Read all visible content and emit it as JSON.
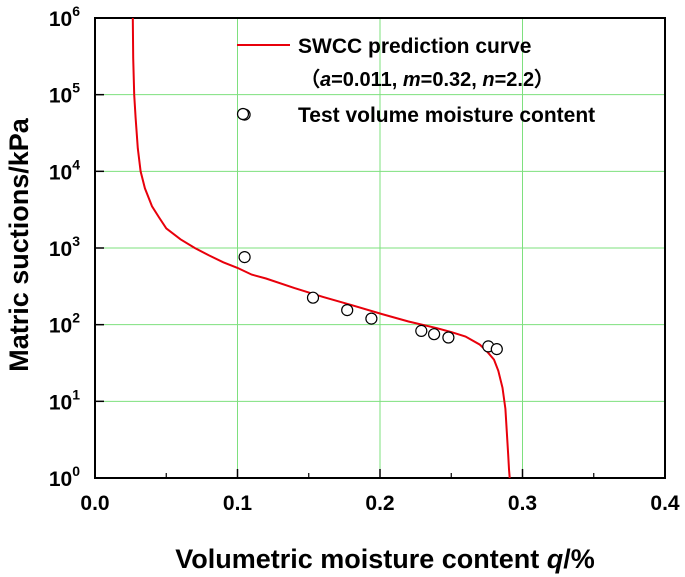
{
  "chart_data": {
    "type": "line",
    "title": "",
    "xlabel": "Volumetric moisture content",
    "xlabel_symbol": "q",
    "xlabel_unit": "/%",
    "ylabel": "Matric suctions/kPa",
    "xlim": [
      0.0,
      0.4
    ],
    "ylim": [
      1,
      1000000
    ],
    "yscale": "log",
    "grid": true,
    "x_ticks": [
      "0.0",
      "0.1",
      "0.2",
      "0.3",
      "0.4"
    ],
    "y_ticks": [
      {
        "base": "10",
        "exp": "0"
      },
      {
        "base": "10",
        "exp": "1"
      },
      {
        "base": "10",
        "exp": "2"
      },
      {
        "base": "10",
        "exp": "3"
      },
      {
        "base": "10",
        "exp": "4"
      },
      {
        "base": "10",
        "exp": "5"
      },
      {
        "base": "10",
        "exp": "6"
      }
    ],
    "legend_position": "top-right",
    "legend": {
      "curve_label": "SWCC prediction curve",
      "params": {
        "open": "（",
        "a_sym": "a",
        "a_val": "=0.011, ",
        "m_sym": "m",
        "m_val": "=0.32, ",
        "n_sym": "n",
        "n_val": "=2.2",
        "close": "）"
      },
      "points_label": "Test volume moisture content"
    },
    "series": [
      {
        "name": "SWCC prediction curve",
        "kind": "line",
        "color": "#e8000b",
        "x": [
          0.0265,
          0.0268,
          0.0275,
          0.0285,
          0.03,
          0.032,
          0.035,
          0.04,
          0.045,
          0.05,
          0.06,
          0.07,
          0.08,
          0.09,
          0.1,
          0.11,
          0.12,
          0.14,
          0.16,
          0.18,
          0.2,
          0.22,
          0.24,
          0.25,
          0.26,
          0.27,
          0.275,
          0.28,
          0.283,
          0.286,
          0.288,
          0.289,
          0.29,
          0.2905,
          0.291
        ],
        "y": [
          1000000,
          300000,
          100000,
          50000,
          20000,
          10000,
          6000,
          3500,
          2500,
          1800,
          1300,
          1000,
          800,
          650,
          550,
          450,
          400,
          300,
          230,
          180,
          140,
          110,
          90,
          80,
          70,
          55,
          45,
          35,
          25,
          15,
          8,
          4,
          2,
          1.3,
          1
        ]
      },
      {
        "name": "Test volume moisture content",
        "kind": "scatter",
        "marker": "open-circle",
        "x": [
          0.105,
          0.105,
          0.153,
          0.177,
          0.194,
          0.229,
          0.238,
          0.248,
          0.276,
          0.282
        ],
        "y": [
          55000,
          760,
          225,
          155,
          120,
          83,
          75,
          68,
          52,
          48
        ]
      }
    ]
  }
}
